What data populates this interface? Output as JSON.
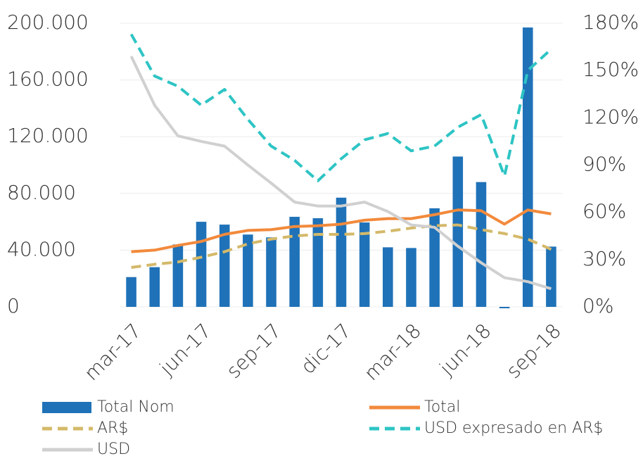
{
  "chart_data": {
    "type": "combo",
    "categories": [
      "mar-17",
      null,
      null,
      "jun-17",
      null,
      null,
      "sep-17",
      null,
      null,
      "dic-17",
      null,
      null,
      "mar-18",
      null,
      null,
      "jun-18",
      null,
      null,
      "sep-18"
    ],
    "series": [
      {
        "name": "Total Nom",
        "type": "bar",
        "color": "#1f72b8",
        "axis": "y",
        "values": [
          21000,
          28000,
          44000,
          60000,
          58000,
          51000,
          49000,
          63500,
          62500,
          77000,
          59500,
          42000,
          41500,
          69500,
          106000,
          88000,
          -1000,
          197000,
          42500
        ]
      },
      {
        "name": "Total",
        "type": "line",
        "color": "#f28a3c",
        "axis": "y2",
        "style": "solid",
        "values": [
          35,
          36,
          39,
          41.5,
          46,
          48.5,
          49,
          51,
          51.5,
          52.5,
          55,
          56,
          56,
          58.5,
          61.5,
          61,
          52.5,
          61.5,
          59
        ]
      },
      {
        "name": "AR$",
        "type": "line",
        "color": "#d4b96a",
        "axis": "y2",
        "style": "dashed",
        "values": [
          25,
          27,
          28.5,
          31.5,
          35,
          40,
          43,
          45,
          46,
          46,
          46.5,
          48,
          50,
          51.5,
          52,
          49,
          46.5,
          43,
          36.5
        ]
      },
      {
        "name": "USD expresado en AR$",
        "type": "line",
        "color": "#2ec4c4",
        "axis": "y2",
        "style": "dashed",
        "values": [
          173,
          146.5,
          140,
          128,
          138,
          119,
          102,
          93,
          80,
          94,
          106,
          110,
          99,
          102,
          114,
          122,
          83,
          150,
          163.5
        ]
      },
      {
        "name": "USD",
        "type": "line",
        "color": "#d0d0d0",
        "axis": "y2",
        "style": "solid",
        "values": [
          159,
          128,
          108.5,
          105,
          102,
          90,
          78.5,
          66.5,
          64,
          64,
          66.5,
          60.5,
          52,
          50.5,
          38.5,
          28,
          18.5,
          16,
          11.5
        ]
      }
    ],
    "ylim": [
      0,
      200000
    ],
    "yticks": [
      0,
      {
        "value": 40000,
        "label": "40.000"
      },
      {
        "value": 80000,
        "label": "80.000"
      },
      {
        "value": 120000,
        "label": "120.000"
      },
      {
        "value": 160000,
        "label": "160.000"
      },
      {
        "value": 200000,
        "label": "200.000"
      }
    ],
    "y2lim": [
      0,
      180
    ],
    "y2ticks": [
      {
        "value": 0,
        "label": "0%"
      },
      {
        "value": 30,
        "label": "30%"
      },
      {
        "value": 60,
        "label": "60%"
      },
      {
        "value": 90,
        "label": "90%"
      },
      {
        "value": 120,
        "label": "120%"
      },
      {
        "value": 150,
        "label": "150%"
      },
      {
        "value": 180,
        "label": "180%"
      }
    ],
    "grid": true
  }
}
